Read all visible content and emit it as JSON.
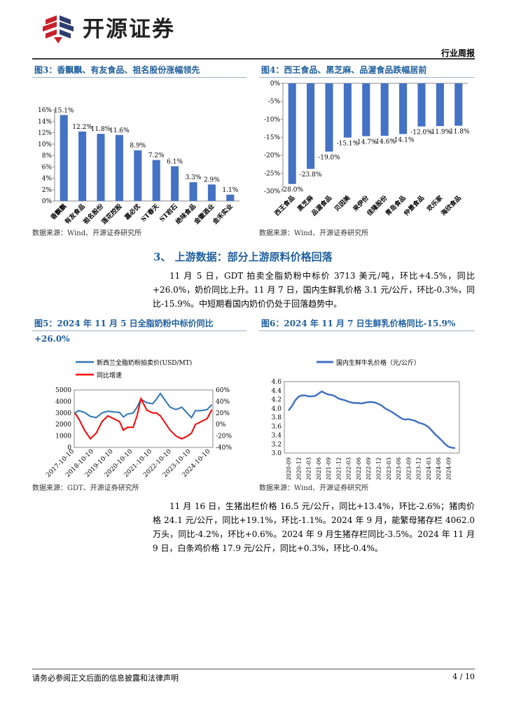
{
  "header": {
    "brand": "开源证券",
    "report_type": "行业周报"
  },
  "fig3": {
    "title": "图3：香飘飘、有友食品、祖名股份涨幅领先",
    "source": "数据来源：Wind、开源证券研究所",
    "chart_data": {
      "type": "bar",
      "categories": [
        "香飘飘",
        "有友食品",
        "祖名股份",
        "莲花控股",
        "嘉必优",
        "ST春天",
        "ST岩石",
        "绝味食品",
        "金徽酒业",
        "金禾实业"
      ],
      "values": [
        15.1,
        12.2,
        11.8,
        11.6,
        8.9,
        7.2,
        6.1,
        3.3,
        2.9,
        1.1
      ],
      "labels": [
        "15.1%",
        "12.2%",
        "11.8%",
        "11.6%",
        "8.9%",
        "7.2%",
        "6.1%",
        "3.3%",
        "2.9%",
        "1.1%"
      ],
      "ylim": [
        0,
        16
      ],
      "yticks": [
        "0%",
        "2%",
        "4%",
        "6%",
        "8%",
        "10%",
        "12%",
        "14%",
        "16%"
      ],
      "color": "#4472c4"
    }
  },
  "fig4": {
    "title": "图4：西王食品、黑芝麻、品渥食品跌幅居前",
    "source": "数据来源：Wind、开源证券研究所",
    "chart_data": {
      "type": "bar",
      "categories": [
        "西王食品",
        "黑芝麻",
        "品渥食品",
        "贝因美",
        "来伊份",
        "佳隆股份",
        "青岛食品",
        "仲景食品",
        "欢乐家",
        "海欣食品"
      ],
      "values": [
        -28.0,
        -23.8,
        -19.0,
        -15.1,
        -14.7,
        -14.6,
        -14.1,
        -12.0,
        -11.9,
        -11.8
      ],
      "labels": [
        "-28.0%",
        "-23.8%",
        "-19.0%",
        "-15.1%",
        "-14.7%",
        "-14.6%",
        "-14.1%",
        "-12.0%",
        "-11.9%",
        "-11.8%"
      ],
      "ylim": [
        -30,
        0
      ],
      "yticks": [
        "0%",
        "-5%",
        "-10%",
        "-15%",
        "-20%",
        "-25%",
        "-30%"
      ],
      "color": "#4472c4"
    }
  },
  "section3": {
    "heading": "3、 上游数据：部分上游原料价格回落",
    "para": "11 月 5 日，GDT 拍卖全脂奶粉中标价 3713 美元/吨，环比+4.5%，同比+26.0%，奶价同比上升。11 月 7 日，国内生鲜乳价格 3.1 元/公斤，环比-0.3%，同比-15.9%。中短期看国内奶价仍处于回落趋势中。"
  },
  "fig5": {
    "title": "图5：2024 年 11 月 5 日全脂奶粉中标价同比+26.0%",
    "source": "数据来源：GDT、开源证券研究所",
    "chart_data": {
      "type": "line",
      "series": [
        {
          "name": "新西兰全脂奶粉拍卖价(USD/MT)",
          "axis": "left",
          "color": "#2e75b6",
          "x": [
            2017.8,
            2018.0,
            2018.3,
            2018.6,
            2018.9,
            2019.2,
            2019.5,
            2019.8,
            2020.1,
            2020.3,
            2020.5,
            2020.8,
            2021.0,
            2021.2,
            2021.5,
            2021.8,
            2022.0,
            2022.2,
            2022.4,
            2022.7,
            2023.0,
            2023.3,
            2023.6,
            2023.8,
            2024.0,
            2024.3,
            2024.6,
            2024.85
          ],
          "y": [
            3000,
            3200,
            3050,
            2700,
            2600,
            3000,
            3150,
            3100,
            3050,
            2650,
            2900,
            3000,
            3500,
            4200,
            3900,
            3800,
            4200,
            4700,
            4200,
            3500,
            3300,
            3500,
            2950,
            2600,
            3200,
            3200,
            3300,
            3713
          ]
        },
        {
          "name": "同比增速",
          "axis": "right",
          "color": "#ff0000",
          "x": [
            2017.8,
            2018.0,
            2018.3,
            2018.6,
            2018.9,
            2019.2,
            2019.5,
            2019.8,
            2020.1,
            2020.3,
            2020.5,
            2020.8,
            2021.0,
            2021.2,
            2021.5,
            2021.8,
            2022.0,
            2022.2,
            2022.4,
            2022.7,
            2023.0,
            2023.3,
            2023.6,
            2023.8,
            2024.0,
            2024.3,
            2024.6,
            2024.85
          ],
          "y": [
            20,
            10,
            -10,
            -25,
            -15,
            5,
            15,
            10,
            5,
            -10,
            -5,
            -5,
            15,
            45,
            25,
            20,
            20,
            15,
            5,
            -10,
            -20,
            -25,
            -20,
            -15,
            0,
            5,
            10,
            26
          ]
        }
      ],
      "xticks": [
        "2017-10-10",
        "2018-10-10",
        "2019-10-10",
        "2020-10-10",
        "2021-10-10",
        "2022-10-10",
        "2023-10-10",
        "2024-10-10"
      ],
      "yticks_left": [
        "0",
        "1000",
        "2000",
        "3000",
        "4000",
        "5000"
      ],
      "yticks_right": [
        "-40%",
        "-20%",
        "0%",
        "20%",
        "40%",
        "60%"
      ],
      "ylim_left": [
        0,
        5000
      ],
      "ylim_right": [
        -40,
        60
      ]
    }
  },
  "fig6": {
    "title": "图6：2024 年 11 月 7 日生鲜乳价格同比-15.9%",
    "source": "数据来源：Wind、开源证券研究所",
    "chart_data": {
      "type": "line",
      "series": [
        {
          "name": "国内生鲜牛乳价格（元/公斤）",
          "color": "#4472c4",
          "x": [
            "2020-09",
            "2020-10",
            "2020-11",
            "2020-12",
            "2021-01",
            "2021-02",
            "2021-03",
            "2021-04",
            "2021-05",
            "2021-06",
            "2021-07",
            "2021-08",
            "2021-09",
            "2021-10",
            "2021-11",
            "2021-12",
            "2022-01",
            "2022-02",
            "2022-03",
            "2022-04",
            "2022-05",
            "2022-06",
            "2022-07",
            "2022-08",
            "2022-09",
            "2022-10",
            "2022-11",
            "2022-12",
            "2023-01",
            "2023-02",
            "2023-03",
            "2023-04",
            "2023-05",
            "2023-06",
            "2023-07",
            "2023-08",
            "2023-09",
            "2023-10",
            "2023-11",
            "2023-12",
            "2024-01",
            "2024-02",
            "2024-03",
            "2024-04",
            "2024-05",
            "2024-06",
            "2024-07",
            "2024-08",
            "2024-09",
            "2024-10",
            "2024-11"
          ],
          "y": [
            3.95,
            4.05,
            4.18,
            4.26,
            4.29,
            4.29,
            4.27,
            4.27,
            4.28,
            4.33,
            4.38,
            4.34,
            4.31,
            4.3,
            4.27,
            4.22,
            4.2,
            4.18,
            4.15,
            4.13,
            4.12,
            4.12,
            4.11,
            4.13,
            4.14,
            4.14,
            4.13,
            4.1,
            4.06,
            4.0,
            3.96,
            3.92,
            3.87,
            3.82,
            3.77,
            3.75,
            3.76,
            3.74,
            3.72,
            3.68,
            3.66,
            3.63,
            3.58,
            3.5,
            3.42,
            3.35,
            3.28,
            3.2,
            3.14,
            3.12,
            3.11
          ]
        }
      ],
      "xticks": [
        "2020-09",
        "2020-12",
        "2021-03",
        "2021-06",
        "2021-09",
        "2021-12",
        "2022-03",
        "2022-06",
        "2022-09",
        "2022-12",
        "2023-03",
        "2023-06",
        "2023-09",
        "2023-12",
        "2024-03",
        "2024-06",
        "2024-09"
      ],
      "yticks": [
        "3.0",
        "3.2",
        "3.4",
        "3.6",
        "3.8",
        "4.0",
        "4.2",
        "4.4",
        "4.6"
      ],
      "ylim": [
        3.0,
        4.6
      ]
    }
  },
  "para2": "11 月 16 日，生猪出栏价格 16.5 元/公斤，同比+13.4%，环比-2.6%；猪肉价格 24.1 元/公斤，同比+19.1%，环比-1.1%。2024 年 9 月，能繁母猪存栏 4062.0 万头，同比-4.2%，环比+0.6%。2024 年 9 月生猪存栏同比-3.5%。2024 年 11 月 9 日，白条鸡价格 17.9 元/公斤，同比+0.3%，环比-0.4%。",
  "footer": {
    "disclaimer": "请务必参阅正文后面的信息披露和法律声明",
    "page": "4 / 10"
  }
}
